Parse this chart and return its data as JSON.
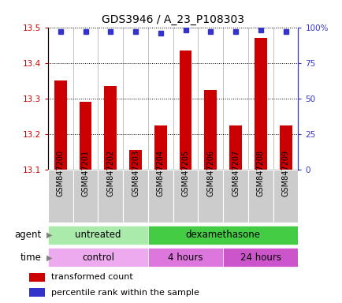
{
  "title": "GDS3946 / A_23_P108303",
  "samples": [
    "GSM847200",
    "GSM847201",
    "GSM847202",
    "GSM847203",
    "GSM847204",
    "GSM847205",
    "GSM847206",
    "GSM847207",
    "GSM847208",
    "GSM847209"
  ],
  "red_values": [
    13.35,
    13.29,
    13.335,
    13.155,
    13.225,
    13.435,
    13.325,
    13.225,
    13.47,
    13.225
  ],
  "blue_values": [
    97,
    97,
    97,
    97,
    96,
    98,
    97,
    97,
    98,
    97
  ],
  "ylim_left": [
    13.1,
    13.5
  ],
  "ylim_right": [
    0,
    100
  ],
  "yticks_left": [
    13.1,
    13.2,
    13.3,
    13.4,
    13.5
  ],
  "yticks_right": [
    0,
    25,
    50,
    75,
    100
  ],
  "ytick_labels_right": [
    "0",
    "25",
    "50",
    "75",
    "100%"
  ],
  "red_color": "#cc0000",
  "blue_color": "#3333cc",
  "bar_width": 0.5,
  "untreated_color": "#aaeaaa",
  "dexamethasone_color": "#44cc44",
  "control_color": "#eeaaee",
  "four_hours_color": "#dd77dd",
  "twentyfour_hours_color": "#cc55cc",
  "sample_box_color": "#cccccc",
  "agent_row_label": "agent",
  "time_row_label": "time",
  "legend_items": [
    {
      "label": "transformed count",
      "color": "#cc0000"
    },
    {
      "label": "percentile rank within the sample",
      "color": "#3333cc"
    }
  ],
  "tick_color_left": "#cc0000",
  "tick_color_right": "#3333cc",
  "title_fontsize": 10,
  "axis_fontsize": 7.5,
  "label_fontsize": 8.5,
  "sample_fontsize": 7
}
